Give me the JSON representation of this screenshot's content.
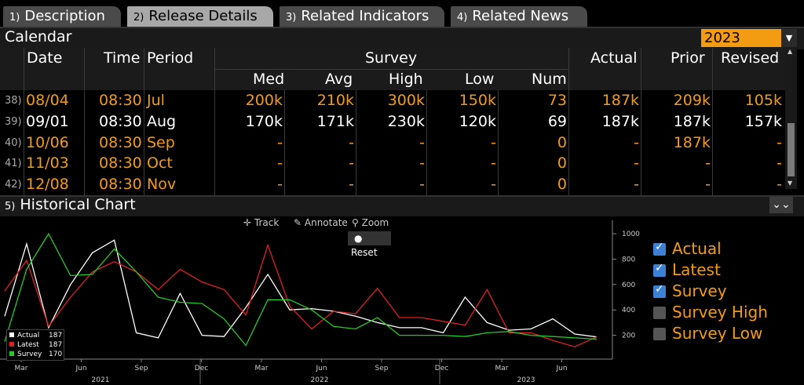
{
  "tabs": [
    {
      "num": "1)",
      "label": "Description"
    },
    {
      "num": "2)",
      "label": "Release Details"
    },
    {
      "num": "3)",
      "label": "Related Indicators"
    },
    {
      "num": "4)",
      "label": "Related News"
    }
  ],
  "calendar": {
    "title": "Calendar",
    "year": "2023",
    "headers": {
      "date": "Date",
      "time": "Time",
      "period": "Period",
      "survey": "Survey",
      "actual": "Actual",
      "prior": "Prior",
      "revised": "Revised",
      "med": "Med",
      "avg": "Avg",
      "high": "High",
      "low": "Low",
      "num": "Num"
    },
    "rows": [
      {
        "n": "38)",
        "date": "08/04",
        "time": "08:30",
        "period": "Jul",
        "med": "200k",
        "avg": "210k",
        "high": "300k",
        "low": "150k",
        "num": "73",
        "actual": "187k",
        "prior": "209k",
        "revised": "105k",
        "style": "orange"
      },
      {
        "n": "39)",
        "date": "09/01",
        "time": "08:30",
        "period": "Aug",
        "med": "170k",
        "avg": "171k",
        "high": "230k",
        "low": "120k",
        "num": "69",
        "actual": "187k",
        "prior": "187k",
        "revised": "157k",
        "style": "white"
      },
      {
        "n": "40)",
        "date": "10/06",
        "time": "08:30",
        "period": "Sep",
        "med": "-",
        "avg": "-",
        "high": "-",
        "low": "-",
        "num": "0",
        "actual": "-",
        "prior": "187k",
        "revised": "-",
        "style": "orange"
      },
      {
        "n": "41)",
        "date": "11/03",
        "time": "08:30",
        "period": "Oct",
        "med": "-",
        "avg": "-",
        "high": "-",
        "low": "-",
        "num": "0",
        "actual": "-",
        "prior": "-",
        "revised": "-",
        "style": "orange"
      },
      {
        "n": "42)",
        "date": "12/08",
        "time": "08:30",
        "period": "Nov",
        "med": "-",
        "avg": "-",
        "high": "-",
        "low": "-",
        "num": "0",
        "actual": "-",
        "prior": "-",
        "revised": "-",
        "style": "orange"
      }
    ]
  },
  "historical": {
    "title": "Historical Chart",
    "num": "5)",
    "toolbar": {
      "track": "Track",
      "annotate": "Annotate",
      "zoom": "Zoom",
      "reset": "Reset"
    },
    "legend_right": [
      {
        "label": "Actual",
        "checked": true
      },
      {
        "label": "Latest",
        "checked": true
      },
      {
        "label": "Survey",
        "checked": true
      },
      {
        "label": "Survey High",
        "checked": false
      },
      {
        "label": "Survey Low",
        "checked": false
      }
    ],
    "legend_inner": [
      {
        "label": "Actual",
        "value": "187",
        "color": "#ffffff"
      },
      {
        "label": "Latest",
        "value": "187",
        "color": "#e02020"
      },
      {
        "label": "Survey",
        "value": "170",
        "color": "#22cc22"
      }
    ]
  },
  "chart_data": {
    "type": "line",
    "ylim": [
      0,
      1050
    ],
    "yticks": [
      200,
      400,
      600,
      800,
      1000
    ],
    "xticks": [
      "Mar",
      "Jun",
      "Sep",
      "Dec",
      "Mar",
      "Jun",
      "Sep",
      "Dec",
      "Mar",
      "Jun"
    ],
    "years": [
      "2021",
      "2022",
      "2023"
    ],
    "series": [
      {
        "name": "Actual",
        "color": "#ffffff",
        "values": [
          350,
          920,
          260,
          600,
          850,
          950,
          220,
          180,
          530,
          200,
          190,
          420,
          680,
          400,
          410,
          390,
          350,
          300,
          260,
          260,
          220,
          500,
          300,
          240,
          250,
          330,
          210,
          187
        ]
      },
      {
        "name": "Latest",
        "color": "#e02020",
        "values": [
          550,
          790,
          270,
          500,
          700,
          780,
          700,
          560,
          720,
          620,
          560,
          360,
          910,
          430,
          250,
          390,
          370,
          570,
          340,
          340,
          310,
          280,
          560,
          220,
          220,
          160,
          110,
          187
        ]
      },
      {
        "name": "Survey",
        "color": "#22cc22",
        "values": [
          150,
          720,
          1000,
          670,
          680,
          880,
          700,
          500,
          460,
          450,
          330,
          120,
          480,
          480,
          400,
          270,
          250,
          340,
          200,
          200,
          200,
          190,
          220,
          230,
          200,
          190,
          180,
          170
        ]
      }
    ]
  }
}
